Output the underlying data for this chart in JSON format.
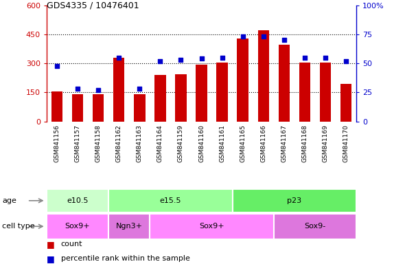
{
  "title": "GDS4335 / 10476401",
  "samples": [
    "GSM841156",
    "GSM841157",
    "GSM841158",
    "GSM841162",
    "GSM841163",
    "GSM841164",
    "GSM841159",
    "GSM841160",
    "GSM841161",
    "GSM841165",
    "GSM841166",
    "GSM841167",
    "GSM841168",
    "GSM841169",
    "GSM841170"
  ],
  "counts": [
    155,
    140,
    140,
    330,
    140,
    240,
    242,
    295,
    305,
    430,
    470,
    395,
    305,
    305,
    195
  ],
  "percentiles": [
    48,
    28,
    27,
    55,
    28,
    52,
    53,
    54,
    55,
    73,
    73,
    70,
    55,
    55,
    52
  ],
  "bar_color": "#cc0000",
  "dot_color": "#0000cc",
  "ylim_left": [
    0,
    600
  ],
  "ylim_right": [
    0,
    100
  ],
  "yticks_left": [
    0,
    150,
    300,
    450,
    600
  ],
  "ytick_labels_left": [
    "0",
    "150",
    "300",
    "450",
    "600"
  ],
  "yticks_right": [
    0,
    25,
    50,
    75,
    100
  ],
  "ytick_labels_right": [
    "0",
    "25",
    "50",
    "75",
    "100%"
  ],
  "age_groups": [
    {
      "label": "e10.5",
      "start": 0,
      "end": 3,
      "color": "#ccffcc"
    },
    {
      "label": "e15.5",
      "start": 3,
      "end": 9,
      "color": "#99ff99"
    },
    {
      "label": "p23",
      "start": 9,
      "end": 15,
      "color": "#66ee66"
    }
  ],
  "cell_type_groups": [
    {
      "label": "Sox9+",
      "start": 0,
      "end": 3,
      "color": "#ff88ff"
    },
    {
      "label": "Ngn3+",
      "start": 3,
      "end": 5,
      "color": "#dd77dd"
    },
    {
      "label": "Sox9+",
      "start": 5,
      "end": 11,
      "color": "#ff88ff"
    },
    {
      "label": "Sox9-",
      "start": 11,
      "end": 15,
      "color": "#dd77dd"
    }
  ],
  "legend_count_label": "count",
  "legend_pct_label": "percentile rank within the sample",
  "bar_color_legend": "#cc0000",
  "dot_color_legend": "#0000cc",
  "left_axis_color": "#cc0000",
  "right_axis_color": "#0000cc",
  "xtick_bg_color": "#cccccc",
  "plot_bg": "#ffffff",
  "grid_dotted_color": "#000000"
}
